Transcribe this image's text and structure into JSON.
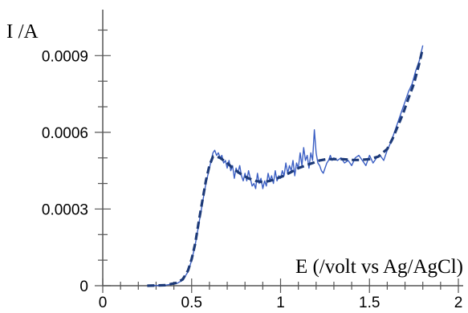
{
  "chart_data": {
    "type": "line",
    "ylabel": "I  /A",
    "xlabel": "E  (/volt vs Ag/AgCl)",
    "xlim": [
      0,
      2
    ],
    "ylim": [
      0,
      0.00108
    ],
    "x_ticks": [
      0,
      0.5,
      1,
      1.5,
      2
    ],
    "x_tick_labels": [
      "0",
      "0.5",
      "1",
      "1.5",
      "2"
    ],
    "y_ticks": [
      0,
      0.0003,
      0.0006,
      0.0009
    ],
    "y_tick_labels": [
      "0",
      "0.0003",
      "0.0006",
      "0.0009"
    ],
    "grid": false,
    "series": [
      {
        "style": "solid",
        "color": "#3b5fc4",
        "x": [
          0.25,
          0.35,
          0.42,
          0.45,
          0.48,
          0.5,
          0.52,
          0.54,
          0.56,
          0.58,
          0.6,
          0.61,
          0.62,
          0.63,
          0.64,
          0.65,
          0.66,
          0.67,
          0.68,
          0.69,
          0.7,
          0.71,
          0.72,
          0.73,
          0.74,
          0.75,
          0.76,
          0.77,
          0.78,
          0.79,
          0.8,
          0.81,
          0.82,
          0.83,
          0.84,
          0.85,
          0.86,
          0.87,
          0.88,
          0.89,
          0.9,
          0.91,
          0.92,
          0.93,
          0.94,
          0.95,
          0.96,
          0.97,
          0.98,
          0.99,
          1.0,
          1.01,
          1.02,
          1.03,
          1.04,
          1.05,
          1.06,
          1.07,
          1.08,
          1.09,
          1.1,
          1.11,
          1.12,
          1.13,
          1.14,
          1.15,
          1.16,
          1.17,
          1.18,
          1.19,
          1.2,
          1.21,
          1.22,
          1.23,
          1.24,
          1.25,
          1.26,
          1.27,
          1.28,
          1.29,
          1.3,
          1.32,
          1.34,
          1.36,
          1.38,
          1.4,
          1.42,
          1.44,
          1.46,
          1.48,
          1.5,
          1.52,
          1.54,
          1.56,
          1.58,
          1.6,
          1.62,
          1.64,
          1.66,
          1.68,
          1.7,
          1.72,
          1.74,
          1.76,
          1.78,
          1.79,
          1.8
        ],
        "y": [
          0.0,
          2e-06,
          1e-05,
          2.2e-05,
          5.5e-05,
          0.0001,
          0.00016,
          0.00024,
          0.00032,
          0.0004,
          0.00046,
          0.00049,
          0.00052,
          0.00053,
          0.00051,
          0.00052,
          0.0005,
          0.00051,
          0.00048,
          0.00049,
          0.00046,
          0.00049,
          0.00045,
          0.00047,
          0.00042,
          0.00046,
          0.00044,
          0.00047,
          0.00043,
          0.00041,
          0.00044,
          0.00041,
          0.00045,
          0.00042,
          0.00039,
          0.0004,
          0.00038,
          0.00044,
          0.0004,
          0.00042,
          0.00038,
          0.00041,
          0.00039,
          0.00044,
          0.00041,
          0.00043,
          0.0004,
          0.00045,
          0.00041,
          0.00043,
          0.00042,
          0.00045,
          0.00043,
          0.00048,
          0.00044,
          0.00047,
          0.00045,
          0.00049,
          0.00043,
          0.00048,
          0.00046,
          0.00052,
          0.00047,
          0.00054,
          0.00049,
          0.00051,
          0.00046,
          0.00052,
          0.00049,
          0.00061,
          0.00052,
          0.00048,
          0.00047,
          0.00045,
          0.00044,
          0.00046,
          0.00048,
          0.00049,
          0.00051,
          0.00049,
          0.0005,
          0.00049,
          0.0005,
          0.00048,
          0.00049,
          0.00047,
          0.0005,
          0.00051,
          0.00049,
          0.00047,
          0.00051,
          0.00048,
          0.0005,
          0.00051,
          0.00049,
          0.00053,
          0.00056,
          0.0006,
          0.00064,
          0.00068,
          0.00072,
          0.00076,
          0.00079,
          0.00084,
          0.00088,
          0.00091,
          0.00094
        ]
      },
      {
        "style": "dashed",
        "color": "#1d3a78",
        "x": [
          0.25,
          0.35,
          0.42,
          0.45,
          0.48,
          0.5,
          0.52,
          0.54,
          0.56,
          0.58,
          0.6,
          0.62,
          0.64,
          0.66,
          0.7,
          0.74,
          0.78,
          0.82,
          0.86,
          0.9,
          0.94,
          0.98,
          1.02,
          1.06,
          1.1,
          1.14,
          1.18,
          1.22,
          1.26,
          1.3,
          1.35,
          1.4,
          1.45,
          1.5,
          1.55,
          1.6,
          1.63,
          1.66,
          1.69,
          1.72,
          1.75,
          1.78,
          1.8
        ],
        "y": [
          0.0,
          2e-06,
          1.2e-05,
          2.5e-05,
          6e-05,
          0.000105,
          0.000165,
          0.00025,
          0.00033,
          0.00041,
          0.00047,
          0.000505,
          0.000505,
          0.0005,
          0.00048,
          0.000455,
          0.000435,
          0.00042,
          0.00041,
          0.000405,
          0.00041,
          0.00042,
          0.00043,
          0.000445,
          0.00046,
          0.00047,
          0.00048,
          0.00049,
          0.000495,
          0.000495,
          0.000495,
          0.000492,
          0.000492,
          0.000495,
          0.000505,
          0.000535,
          0.000575,
          0.000625,
          0.000675,
          0.000735,
          0.00079,
          0.00087,
          0.00093
        ]
      }
    ]
  }
}
